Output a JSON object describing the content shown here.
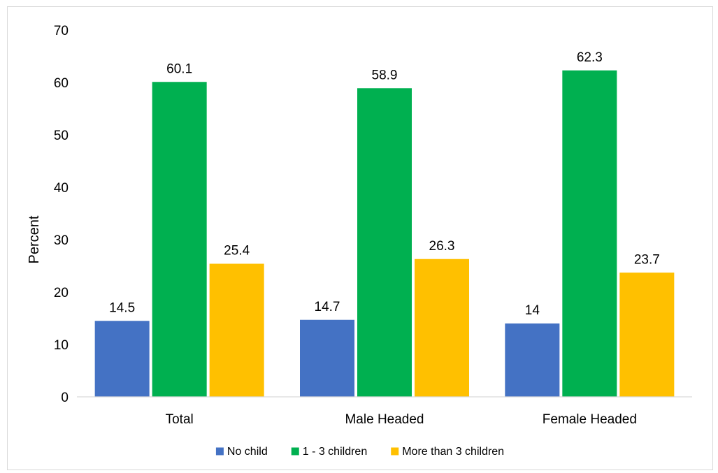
{
  "chart_data": {
    "type": "bar",
    "title": "",
    "xlabel": "",
    "ylabel": "Percent",
    "ylim": [
      0,
      70
    ],
    "yticks": [
      0,
      10,
      20,
      30,
      40,
      50,
      60,
      70
    ],
    "categories": [
      "Total",
      "Male Headed",
      "Female Headed"
    ],
    "series": [
      {
        "name": "No child",
        "values": [
          14.5,
          14.7,
          14
        ],
        "labels": [
          "14.5",
          "14.7",
          "14"
        ],
        "color": "#4472c4"
      },
      {
        "name": "1 - 3 children",
        "values": [
          60.1,
          58.9,
          62.3
        ],
        "labels": [
          "60.1",
          "58.9",
          "62.3"
        ],
        "color": "#00b050"
      },
      {
        "name": "More than 3 children",
        "values": [
          25.4,
          26.3,
          23.7
        ],
        "labels": [
          "25.4",
          "26.3",
          "23.7"
        ],
        "color": "#ffc000"
      }
    ],
    "grid": false,
    "legend_position": "bottom",
    "data_labels": true
  }
}
